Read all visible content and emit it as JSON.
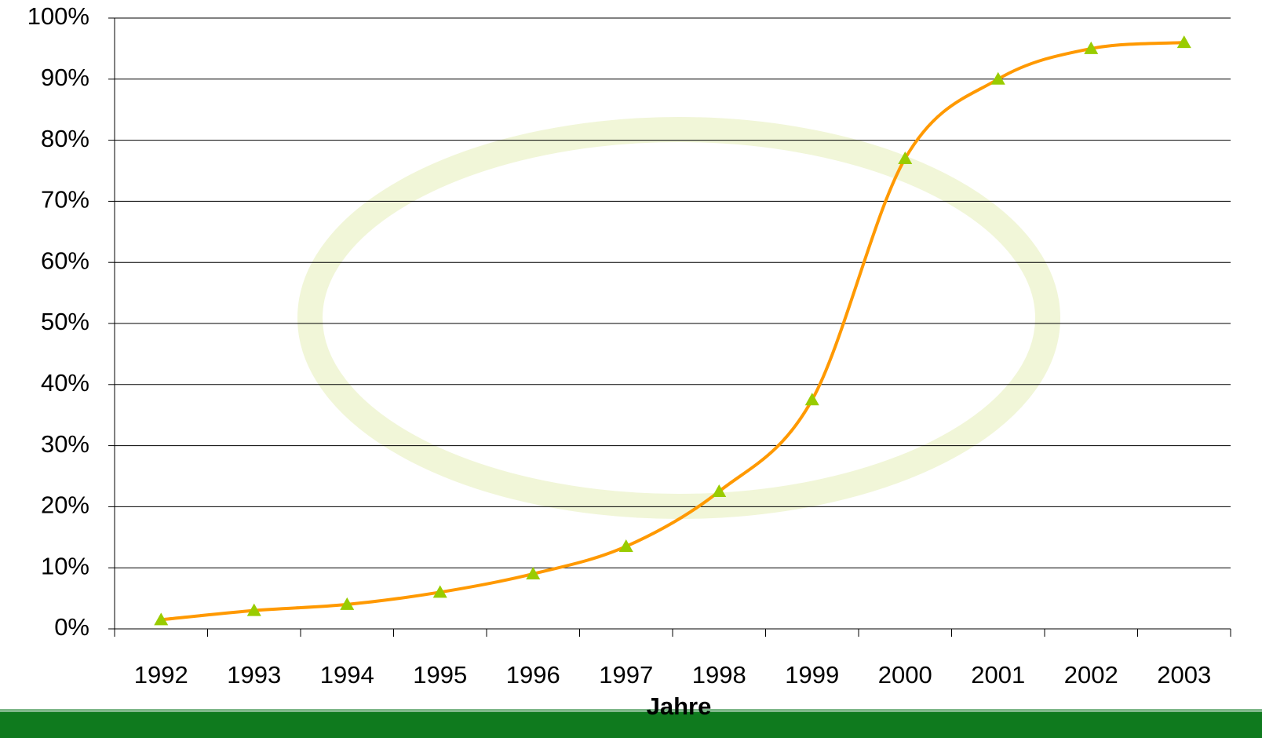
{
  "chart_data": {
    "type": "line",
    "x_label": "Jahre",
    "categories": [
      "1992",
      "1993",
      "1994",
      "1995",
      "1996",
      "1997",
      "1998",
      "1999",
      "2000",
      "2001",
      "2002",
      "2003"
    ],
    "series": [
      {
        "color": "#ff9900",
        "marker_color": "#99cc00",
        "values": [
          1.5,
          3,
          4,
          6,
          9,
          13.5,
          22.5,
          37.5,
          77,
          90,
          95,
          96
        ]
      }
    ],
    "ylim": [
      0,
      100
    ],
    "yticks": [
      {
        "value": 0,
        "label": "0%"
      },
      {
        "value": 10,
        "label": "10%"
      },
      {
        "value": 20,
        "label": "20%"
      },
      {
        "value": 30,
        "label": "30%"
      },
      {
        "value": 40,
        "label": "40%"
      },
      {
        "value": 50,
        "label": "50%"
      },
      {
        "value": 60,
        "label": "60%"
      },
      {
        "value": 70,
        "label": "70%"
      },
      {
        "value": 80,
        "label": "80%"
      },
      {
        "value": 90,
        "label": "90%"
      },
      {
        "value": 100,
        "label": "100%"
      }
    ],
    "grid": true
  }
}
